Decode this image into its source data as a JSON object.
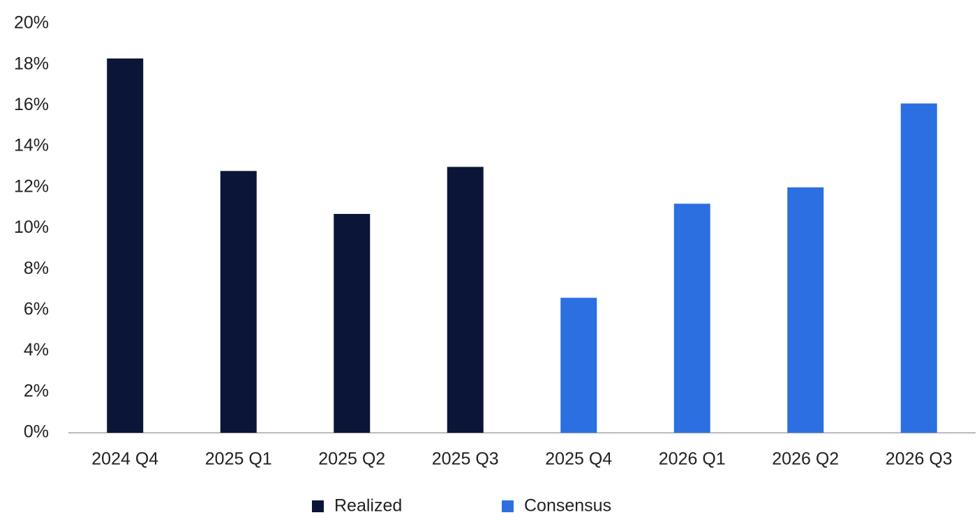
{
  "chart_data": {
    "type": "bar",
    "categories": [
      "2024 Q4",
      "2025 Q1",
      "2025 Q2",
      "2025 Q3",
      "2025 Q4",
      "2026 Q1",
      "2026 Q2",
      "2026 Q3"
    ],
    "series": [
      {
        "name": "Realized",
        "color": "#0b1538",
        "values": [
          18.3,
          12.8,
          10.7,
          13.0,
          null,
          null,
          null,
          null
        ]
      },
      {
        "name": "Consensus",
        "color": "#2c6fe0",
        "values": [
          null,
          null,
          null,
          null,
          6.6,
          11.2,
          12.0,
          16.1
        ]
      }
    ],
    "ylim": [
      0,
      20
    ],
    "yticks": [
      {
        "value": 0,
        "label": "0%"
      },
      {
        "value": 2,
        "label": "2%"
      },
      {
        "value": 4,
        "label": "4%"
      },
      {
        "value": 6,
        "label": "6%"
      },
      {
        "value": 8,
        "label": "8%"
      },
      {
        "value": 10,
        "label": "10%"
      },
      {
        "value": 12,
        "label": "12%"
      },
      {
        "value": 14,
        "label": "14%"
      },
      {
        "value": 16,
        "label": "16%"
      },
      {
        "value": 18,
        "label": "18%"
      },
      {
        "value": 20,
        "label": "20%"
      }
    ],
    "grid": false,
    "legend": "bottom"
  }
}
